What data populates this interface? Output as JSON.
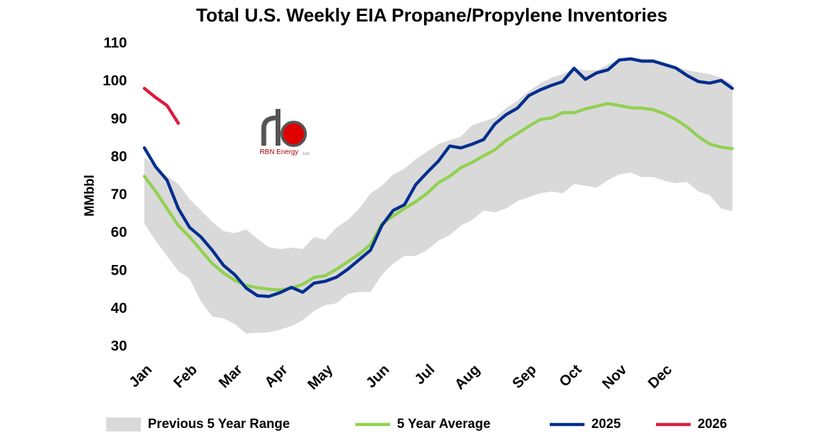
{
  "chart_data": {
    "type": "range-line",
    "title": "Total U.S. Weekly EIA Propane/Propylene Inventories",
    "y_label": "MMbbl",
    "logo_text": "RBN Energy",
    "logo_suffix": "LLC",
    "categories": [
      "Jan",
      null,
      null,
      null,
      "Feb",
      null,
      null,
      null,
      "Mar",
      null,
      null,
      null,
      "Apr",
      null,
      null,
      null,
      "May",
      null,
      null,
      null,
      null,
      "Jun",
      null,
      null,
      null,
      "Jul",
      null,
      null,
      null,
      "Aug",
      null,
      null,
      null,
      null,
      "Sep",
      null,
      null,
      null,
      "Oct",
      null,
      null,
      null,
      "Nov",
      null,
      null,
      null,
      "Dec",
      null,
      null,
      null,
      null,
      null,
      null
    ],
    "ylim": [
      30,
      110
    ],
    "yticks": [
      30,
      40,
      50,
      60,
      70,
      80,
      90,
      100,
      110
    ],
    "grid": false,
    "legend": "bottom",
    "range": {
      "name": "Previous 5 Year Range",
      "color": "#d9d9d9",
      "high": [
        80,
        77.5,
        75,
        73,
        69,
        66,
        63,
        60.5,
        60,
        61,
        58.5,
        56.3,
        55.8,
        56.2,
        55.8,
        59,
        58.3,
        61.5,
        63.5,
        66.5,
        70.5,
        72.5,
        75.5,
        77,
        79.5,
        81.5,
        83.5,
        84.5,
        85.5,
        88.5,
        89.5,
        90.5,
        93,
        95,
        97.5,
        99.5,
        101,
        102,
        103.5,
        103,
        103,
        104.5,
        106,
        106.5,
        106,
        106,
        105,
        104,
        103,
        102.5,
        102,
        101,
        99.5
      ],
      "low": [
        62.5,
        58,
        54,
        50,
        48,
        42,
        38,
        37.5,
        36,
        33.5,
        33.7,
        33.8,
        34.5,
        35.5,
        37,
        39.5,
        41,
        41.5,
        44,
        44.5,
        44.5,
        49,
        52,
        54,
        54,
        55.5,
        58,
        59.5,
        62,
        63.5,
        66,
        65.5,
        66.5,
        68.5,
        69.5,
        70.5,
        71,
        70.5,
        73,
        72.5,
        72,
        74,
        75.5,
        76,
        74.8,
        74.8,
        73.8,
        73.2,
        73.5,
        71,
        70,
        66.5,
        65.8
      ]
    },
    "series": [
      {
        "name": "5 Year Average",
        "color": "#92d050",
        "values": [
          75,
          71,
          66.5,
          62,
          59,
          55.5,
          52,
          49.5,
          47.5,
          46.2,
          45.6,
          45.2,
          45,
          45.5,
          46.5,
          48.3,
          48.8,
          50.5,
          52.5,
          54.5,
          57,
          62.5,
          64.5,
          66.5,
          68.3,
          70.5,
          73.3,
          75,
          77.3,
          78.7,
          80.4,
          82,
          84.5,
          86.3,
          88.2,
          90,
          90.4,
          91.8,
          91.8,
          92.8,
          93.5,
          94.2,
          93.7,
          93.1,
          93,
          92.6,
          91.5,
          90,
          88,
          85.5,
          83.5,
          82.7,
          82.3
        ]
      },
      {
        "name": "2025",
        "color": "#002e8f",
        "values": [
          82.5,
          77.5,
          74,
          66.5,
          61.5,
          59,
          55.5,
          51.5,
          49,
          45.5,
          43.5,
          43.3,
          44.3,
          45.7,
          44.4,
          46.8,
          47.3,
          48.4,
          50.5,
          53,
          55.5,
          62,
          66,
          67.5,
          72.8,
          76,
          79,
          83,
          82.5,
          83.5,
          84.7,
          88.8,
          91.3,
          93,
          96.3,
          97.8,
          99,
          100,
          103.5,
          100.6,
          102.3,
          103.1,
          105.7,
          106,
          105.4,
          105.4,
          104.5,
          103.6,
          101.6,
          100,
          99.6,
          100.3,
          98.2
        ]
      },
      {
        "name": "2026",
        "color": "#e0193c",
        "values": [
          98.2,
          95.8,
          93.7,
          89,
          null,
          null,
          null,
          null,
          null,
          null,
          null,
          null,
          null,
          null,
          null,
          null,
          null,
          null,
          null,
          null,
          null,
          null,
          null,
          null,
          null,
          null,
          null,
          null,
          null,
          null,
          null,
          null,
          null,
          null,
          null,
          null,
          null,
          null,
          null,
          null,
          null,
          null,
          null,
          null,
          null,
          null,
          null,
          null,
          null,
          null,
          null,
          null,
          null
        ]
      }
    ]
  }
}
